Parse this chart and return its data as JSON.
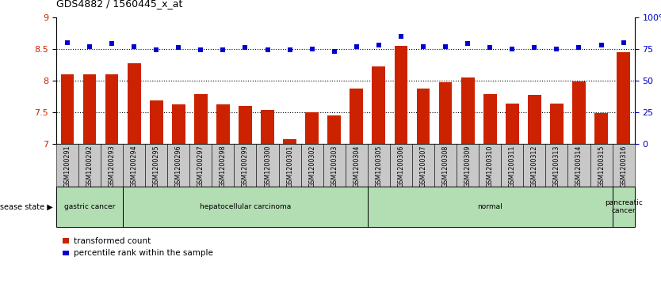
{
  "title": "GDS4882 / 1560445_x_at",
  "samples": [
    "GSM1200291",
    "GSM1200292",
    "GSM1200293",
    "GSM1200294",
    "GSM1200295",
    "GSM1200296",
    "GSM1200297",
    "GSM1200298",
    "GSM1200299",
    "GSM1200300",
    "GSM1200301",
    "GSM1200302",
    "GSM1200303",
    "GSM1200304",
    "GSM1200305",
    "GSM1200306",
    "GSM1200307",
    "GSM1200308",
    "GSM1200309",
    "GSM1200310",
    "GSM1200311",
    "GSM1200312",
    "GSM1200313",
    "GSM1200314",
    "GSM1200315",
    "GSM1200316"
  ],
  "transformed_count": [
    8.1,
    8.1,
    8.1,
    8.27,
    7.68,
    7.62,
    7.78,
    7.62,
    7.6,
    7.53,
    7.07,
    7.5,
    7.45,
    7.87,
    8.22,
    8.55,
    7.87,
    7.97,
    8.05,
    7.78,
    7.63,
    7.77,
    7.63,
    7.98,
    7.48,
    8.45
  ],
  "percentile_rank": [
    80,
    77,
    79,
    77,
    74,
    76,
    74,
    74,
    76,
    74,
    74,
    75,
    73,
    77,
    78,
    85,
    77,
    77,
    79,
    76,
    75,
    76,
    75,
    76,
    78,
    80
  ],
  "ylim_left": [
    7,
    9
  ],
  "ylim_right": [
    0,
    100
  ],
  "yticks_left": [
    7,
    7.5,
    8,
    8.5,
    9
  ],
  "yticks_right": [
    0,
    25,
    50,
    75,
    100
  ],
  "ytick_labels_right": [
    "0",
    "25",
    "50",
    "75",
    "100%"
  ],
  "bar_color": "#cc2200",
  "dot_color": "#0000cc",
  "disease_groups": [
    {
      "label": "gastric cancer",
      "start": 0,
      "end": 3
    },
    {
      "label": "hepatocellular carcinoma",
      "start": 3,
      "end": 14
    },
    {
      "label": "normal",
      "start": 14,
      "end": 25
    },
    {
      "label": "pancreatic\ncancer",
      "start": 25,
      "end": 26
    }
  ],
  "disease_state_label": "disease state",
  "legend_bar_label": "transformed count",
  "legend_dot_label": "percentile rank within the sample",
  "light_green": "#b3ddb3",
  "tick_gray": "#c8c8c8"
}
